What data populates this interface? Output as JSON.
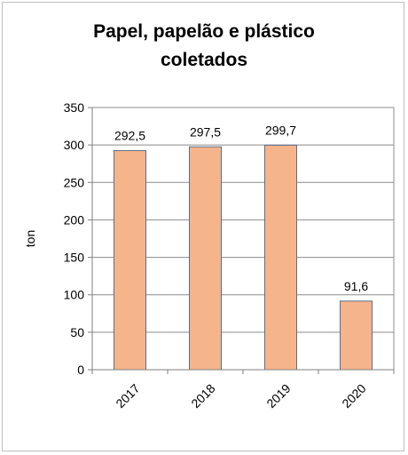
{
  "chart_data": {
    "type": "bar",
    "title_lines": [
      "Papel, papelão e plástico",
      "coletados"
    ],
    "xlabel": "",
    "ylabel": "ton",
    "categories": [
      "2017",
      "2018",
      "2019",
      "2020"
    ],
    "values": [
      292.5,
      297.5,
      299.7,
      91.6
    ],
    "data_labels": [
      "292,5",
      "297,5",
      "299,7",
      "91,6"
    ],
    "ylim": [
      0,
      350
    ],
    "yticks": [
      "0",
      "50",
      "100",
      "150",
      "200",
      "250",
      "300",
      "350"
    ],
    "grid": true,
    "legend": "none",
    "colors": {
      "bar_fill": "#f6b48a",
      "bar_stroke": "#5a6e8c",
      "grid": "#8c8c8c",
      "axis": "#7f7f7f"
    }
  }
}
